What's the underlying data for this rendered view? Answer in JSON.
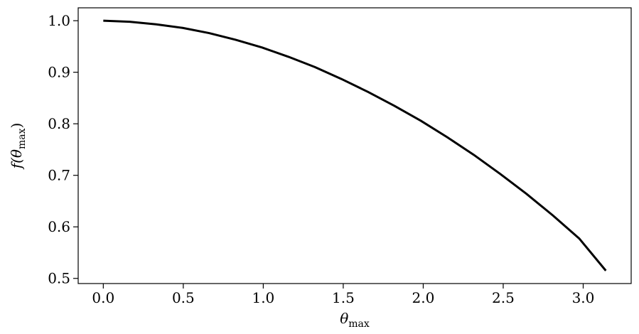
{
  "chart_data": {
    "type": "line",
    "title": "",
    "xlabel": {
      "main": "θ",
      "sub": "max"
    },
    "ylabel": {
      "prefix": "f(",
      "main": "θ",
      "sub": "max",
      "suffix": ")"
    },
    "xlim": [
      -0.157,
      3.3
    ],
    "ylim": [
      0.49,
      1.025
    ],
    "xticks": [
      0.0,
      0.5,
      1.0,
      1.5,
      2.0,
      2.5,
      3.0
    ],
    "xtick_labels": [
      "0.0",
      "0.5",
      "1.0",
      "1.5",
      "2.0",
      "2.5",
      "3.0"
    ],
    "yticks": [
      0.5,
      0.6,
      0.7,
      0.8,
      0.9,
      1.0
    ],
    "ytick_labels": [
      "0.5",
      "0.6",
      "0.7",
      "0.8",
      "0.9",
      "1.0"
    ],
    "grid": false,
    "legend": "none",
    "series": [
      {
        "color": "#000000",
        "x": [
          0.0,
          0.1653,
          0.3307,
          0.496,
          0.6614,
          0.8267,
          0.9921,
          1.1574,
          1.3228,
          1.4881,
          1.6535,
          1.8188,
          1.9842,
          2.1495,
          2.3149,
          2.4802,
          2.6456,
          2.8109,
          2.9763,
          3.1416
        ],
        "y": [
          1.0,
          0.998,
          0.993,
          0.986,
          0.976,
          0.963,
          0.948,
          0.93,
          0.91,
          0.887,
          0.862,
          0.835,
          0.806,
          0.774,
          0.74,
          0.703,
          0.664,
          0.622,
          0.577,
          0.515
        ]
      }
    ]
  }
}
